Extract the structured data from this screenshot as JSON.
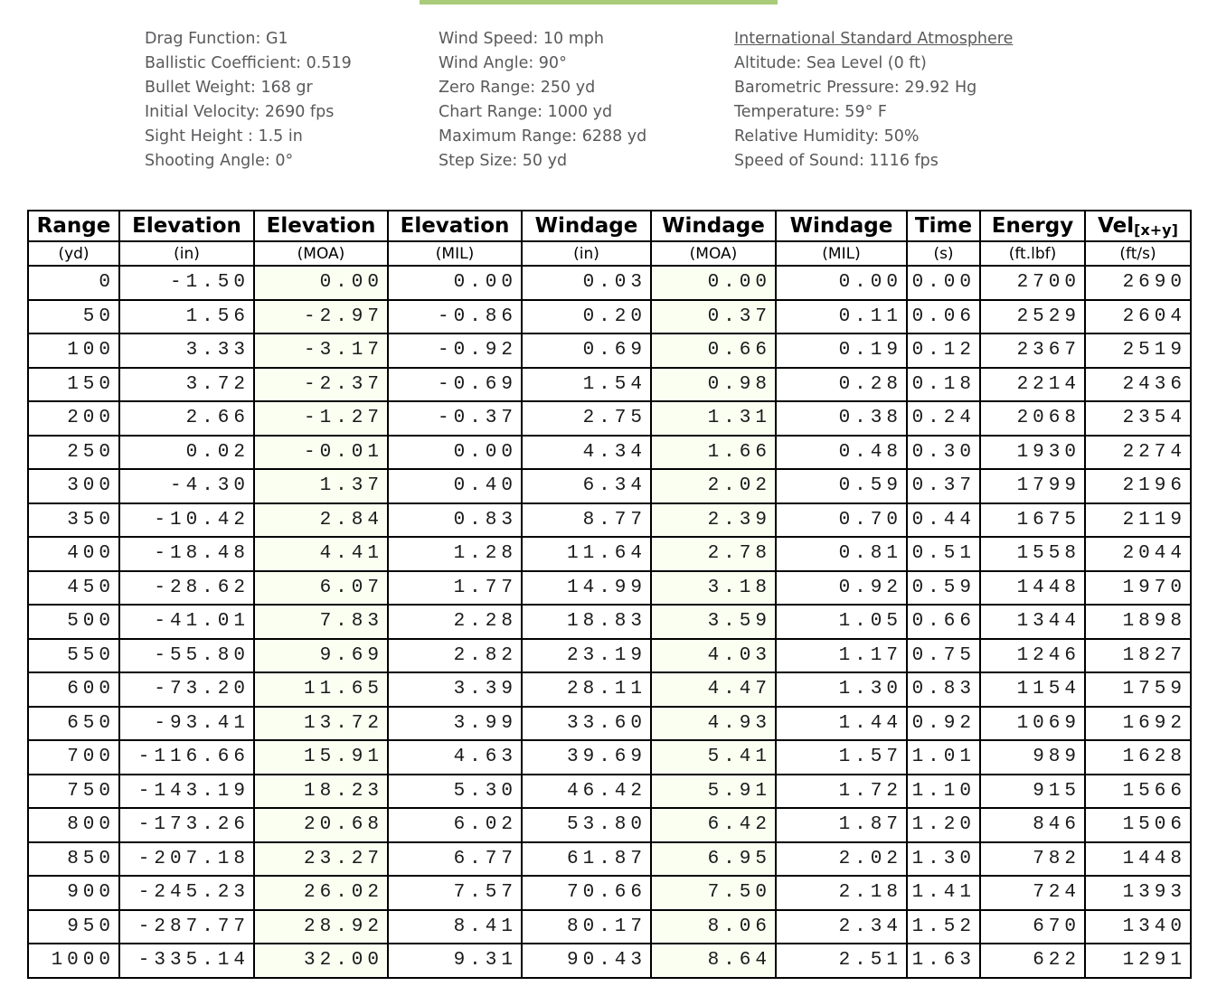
{
  "colors": {
    "top_bar_accent": "#a9cb7a",
    "moa_column_tint": "#fbfff2"
  },
  "parameters": {
    "ballistics": [
      "Drag Function: G1",
      "Ballistic Coefficient: 0.519",
      "Bullet Weight: 168 gr",
      "Initial Velocity: 2690 fps",
      "Sight Height : 1.5 in",
      "Shooting Angle: 0°"
    ],
    "conditions": [
      "Wind Speed: 10 mph",
      "Wind Angle: 90°",
      "Zero Range: 250 yd",
      "Chart Range: 1000 yd",
      "Maximum Range: 6288 yd",
      "Step Size: 50 yd"
    ],
    "atmosphere_title": "International Standard Atmosphere",
    "atmosphere": [
      "Altitude: Sea Level (0 ft)",
      "Barometric Pressure: 29.92 Hg",
      "Temperature: 59° F",
      "Relative Humidity: 50%",
      "Speed of Sound: 1116 fps"
    ]
  },
  "table": {
    "headers": [
      {
        "label": "Range",
        "unit": "(yd)"
      },
      {
        "label": "Elevation",
        "unit": "(in)"
      },
      {
        "label": "Elevation",
        "unit": "(MOA)"
      },
      {
        "label": "Elevation",
        "unit": "(MIL)"
      },
      {
        "label": "Windage",
        "unit": "(in)"
      },
      {
        "label": "Windage",
        "unit": "(MOA)"
      },
      {
        "label": "Windage",
        "unit": "(MIL)"
      },
      {
        "label": "Time",
        "unit": "(s)"
      },
      {
        "label": "Energy",
        "unit": "(ft.lbf)"
      },
      {
        "label_main": "Vel",
        "label_sub": "[x+y]",
        "unit": "(ft/s)"
      }
    ],
    "tinted_columns": [
      2,
      5
    ],
    "rows": [
      [
        "0",
        "-1.50",
        "0.00",
        "0.00",
        "0.03",
        "0.00",
        "0.00",
        "0.00",
        "2700",
        "2690"
      ],
      [
        "50",
        "1.56",
        "-2.97",
        "-0.86",
        "0.20",
        "0.37",
        "0.11",
        "0.06",
        "2529",
        "2604"
      ],
      [
        "100",
        "3.33",
        "-3.17",
        "-0.92",
        "0.69",
        "0.66",
        "0.19",
        "0.12",
        "2367",
        "2519"
      ],
      [
        "150",
        "3.72",
        "-2.37",
        "-0.69",
        "1.54",
        "0.98",
        "0.28",
        "0.18",
        "2214",
        "2436"
      ],
      [
        "200",
        "2.66",
        "-1.27",
        "-0.37",
        "2.75",
        "1.31",
        "0.38",
        "0.24",
        "2068",
        "2354"
      ],
      [
        "250",
        "0.02",
        "-0.01",
        "0.00",
        "4.34",
        "1.66",
        "0.48",
        "0.30",
        "1930",
        "2274"
      ],
      [
        "300",
        "-4.30",
        "1.37",
        "0.40",
        "6.34",
        "2.02",
        "0.59",
        "0.37",
        "1799",
        "2196"
      ],
      [
        "350",
        "-10.42",
        "2.84",
        "0.83",
        "8.77",
        "2.39",
        "0.70",
        "0.44",
        "1675",
        "2119"
      ],
      [
        "400",
        "-18.48",
        "4.41",
        "1.28",
        "11.64",
        "2.78",
        "0.81",
        "0.51",
        "1558",
        "2044"
      ],
      [
        "450",
        "-28.62",
        "6.07",
        "1.77",
        "14.99",
        "3.18",
        "0.92",
        "0.59",
        "1448",
        "1970"
      ],
      [
        "500",
        "-41.01",
        "7.83",
        "2.28",
        "18.83",
        "3.59",
        "1.05",
        "0.66",
        "1344",
        "1898"
      ],
      [
        "550",
        "-55.80",
        "9.69",
        "2.82",
        "23.19",
        "4.03",
        "1.17",
        "0.75",
        "1246",
        "1827"
      ],
      [
        "600",
        "-73.20",
        "11.65",
        "3.39",
        "28.11",
        "4.47",
        "1.30",
        "0.83",
        "1154",
        "1759"
      ],
      [
        "650",
        "-93.41",
        "13.72",
        "3.99",
        "33.60",
        "4.93",
        "1.44",
        "0.92",
        "1069",
        "1692"
      ],
      [
        "700",
        "-116.66",
        "15.91",
        "4.63",
        "39.69",
        "5.41",
        "1.57",
        "1.01",
        "989",
        "1628"
      ],
      [
        "750",
        "-143.19",
        "18.23",
        "5.30",
        "46.42",
        "5.91",
        "1.72",
        "1.10",
        "915",
        "1566"
      ],
      [
        "800",
        "-173.26",
        "20.68",
        "6.02",
        "53.80",
        "6.42",
        "1.87",
        "1.20",
        "846",
        "1506"
      ],
      [
        "850",
        "-207.18",
        "23.27",
        "6.77",
        "61.87",
        "6.95",
        "2.02",
        "1.30",
        "782",
        "1448"
      ],
      [
        "900",
        "-245.23",
        "26.02",
        "7.57",
        "70.66",
        "7.50",
        "2.18",
        "1.41",
        "724",
        "1393"
      ],
      [
        "950",
        "-287.77",
        "28.92",
        "8.41",
        "80.17",
        "8.06",
        "2.34",
        "1.52",
        "670",
        "1340"
      ],
      [
        "1000",
        "-335.14",
        "32.00",
        "9.31",
        "90.43",
        "8.64",
        "2.51",
        "1.63",
        "622",
        "1291"
      ]
    ]
  }
}
